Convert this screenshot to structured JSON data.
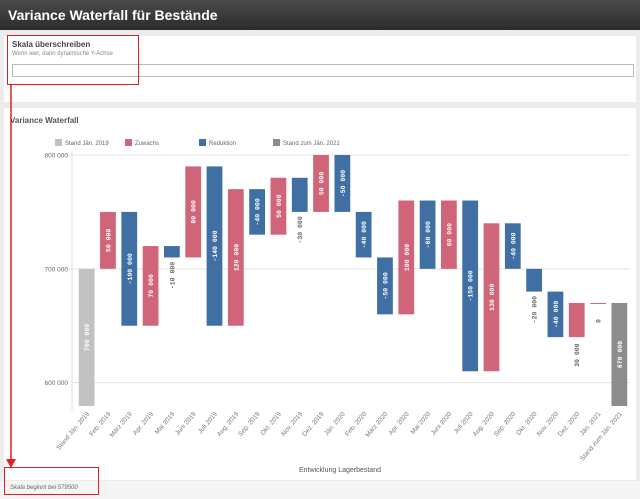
{
  "page": {
    "title": "Variance Waterfall für Bestände"
  },
  "scale_panel": {
    "title": "Skala überschreiben",
    "subtitle": "Wenn leer, dann dynamische Y-Achse",
    "input_value": ""
  },
  "chart_panel": {
    "title": "Variance Waterfall"
  },
  "footer": {
    "note": "Skala beginnt bei 579500"
  },
  "colors": {
    "stand": "#c2c2c2",
    "zuwachs": "#d0657a",
    "reduktion": "#3f6fa3",
    "end": "#8d8d8d",
    "annotation": "#e02020"
  },
  "chart_data": {
    "type": "waterfall",
    "title": "Variance Waterfall",
    "xlabel": "Entwicklung Lagerbestand",
    "ylabel": "",
    "ylim": [
      579500,
      800000
    ],
    "yticks": [
      600000,
      700000,
      800000
    ],
    "ytick_labels": [
      "600 000",
      "700 000",
      "800 000"
    ],
    "legend": [
      {
        "name": "Stand Jän. 2019",
        "color": "#c2c2c2"
      },
      {
        "name": "Zuwachs",
        "color": "#d0657a"
      },
      {
        "name": "Reduktion",
        "color": "#3f6fa3"
      },
      {
        "name": "Stand zum Jän. 2021",
        "color": "#8d8d8d"
      }
    ],
    "items": [
      {
        "label": "Stand Jän. 2019",
        "kind": "stand",
        "value": 700000,
        "text": "700 000"
      },
      {
        "label": "Feb. 2019",
        "kind": "zuwachs",
        "value": 50000,
        "text": "50 000"
      },
      {
        "label": "März 2019",
        "kind": "reduktion",
        "value": -100000,
        "text": "-100 000"
      },
      {
        "label": "Apr. 2019",
        "kind": "zuwachs",
        "value": 70000,
        "text": "70 000"
      },
      {
        "label": "Mai 2019",
        "kind": "reduktion",
        "value": -10000,
        "text": "-10 000"
      },
      {
        "label": "Juni 2019",
        "kind": "zuwachs",
        "value": 80000,
        "text": "80 000"
      },
      {
        "label": "Juli 2019",
        "kind": "reduktion",
        "value": -140000,
        "text": "-140 000"
      },
      {
        "label": "Aug. 2019",
        "kind": "zuwachs",
        "value": 120000,
        "text": "120 000"
      },
      {
        "label": "Sep. 2019",
        "kind": "reduktion",
        "value": -40000,
        "text": "-40 000"
      },
      {
        "label": "Okt. 2019",
        "kind": "zuwachs",
        "value": 50000,
        "text": "50 000"
      },
      {
        "label": "Nov. 2019",
        "kind": "reduktion",
        "value": -30000,
        "text": "-30 000"
      },
      {
        "label": "Dez. 2019",
        "kind": "zuwachs",
        "value": 50000,
        "text": "50 000"
      },
      {
        "label": "Jän. 2020",
        "kind": "reduktion",
        "value": -50000,
        "text": "-50 000"
      },
      {
        "label": "Feb. 2020",
        "kind": "reduktion",
        "value": -40000,
        "text": "-40 000"
      },
      {
        "label": "März 2020",
        "kind": "reduktion",
        "value": -50000,
        "text": "-50 000"
      },
      {
        "label": "Apr. 2020",
        "kind": "zuwachs",
        "value": 100000,
        "text": "100 000"
      },
      {
        "label": "Mai 2020",
        "kind": "reduktion",
        "value": -60000,
        "text": "-60 000"
      },
      {
        "label": "Juni 2020",
        "kind": "zuwachs",
        "value": 60000,
        "text": "60 000"
      },
      {
        "label": "Juli 2020",
        "kind": "reduktion",
        "value": -150000,
        "text": "-150 000"
      },
      {
        "label": "Aug. 2020",
        "kind": "zuwachs",
        "value": 130000,
        "text": "130 000"
      },
      {
        "label": "Sep. 2020",
        "kind": "reduktion",
        "value": -40000,
        "text": "-40 000"
      },
      {
        "label": "Okt. 2020",
        "kind": "reduktion",
        "value": -20000,
        "text": "-20 000"
      },
      {
        "label": "Nov. 2020",
        "kind": "reduktion",
        "value": -40000,
        "text": "-40 000"
      },
      {
        "label": "Dez. 2020",
        "kind": "zuwachs",
        "value": 30000,
        "text": "30 000"
      },
      {
        "label": "Jän. 2021",
        "kind": "zuwachs",
        "value": 0,
        "text": "0"
      },
      {
        "label": "Stand zum Jän. 2021",
        "kind": "end",
        "value": 670000,
        "text": "670 000"
      }
    ]
  }
}
